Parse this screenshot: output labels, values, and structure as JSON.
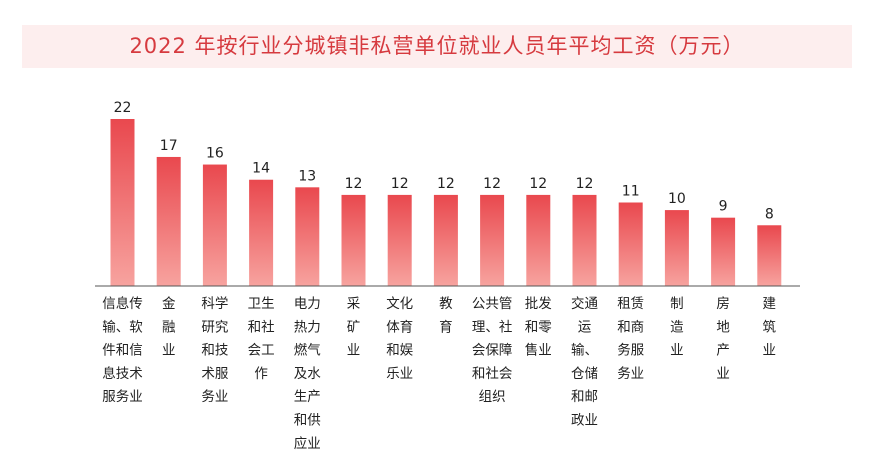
{
  "title": "2022 年按行业分城镇非私营单位就业人员年平均工资（万元）",
  "chart_data": {
    "type": "bar",
    "title": "2022 年按行业分城镇非私营单位就业人员年平均工资（万元）",
    "xlabel": "",
    "ylabel": "",
    "categories": [
      "信息传输、软件和信息技术服务业",
      "金融业",
      "科学研究和技术服务业",
      "卫生和社会工作",
      "电力热力燃气及水生产和供应业",
      "采矿业",
      "文化体育和娱乐业",
      "教育",
      "公共管理、社会保障和社会组织",
      "批发和零售业",
      "交通运输、仓储和邮政业",
      "租赁和商务服务业",
      "制造业",
      "房地产业",
      "建筑业"
    ],
    "category_lines": [
      [
        "信息传",
        "输、软",
        "件和信",
        "息技术",
        "服务业"
      ],
      [
        "金",
        "融",
        "业"
      ],
      [
        "科学",
        "研究",
        "和技",
        "术服",
        "务业"
      ],
      [
        "卫生",
        "和社",
        "会工",
        "作"
      ],
      [
        "电力",
        "热力",
        "燃气",
        "及水",
        "生产",
        "和供",
        "应业"
      ],
      [
        "采",
        "矿",
        "业"
      ],
      [
        "文化",
        "体育",
        "和娱",
        "乐业"
      ],
      [
        "教",
        "育"
      ],
      [
        "公共管",
        "理、社",
        "会保障",
        "和社会",
        "组织"
      ],
      [
        "批发",
        "和零",
        "售业"
      ],
      [
        "交通",
        "运",
        "输、",
        "仓储",
        "和邮",
        "政业"
      ],
      [
        "租赁",
        "和商",
        "务服",
        "务业"
      ],
      [
        "制",
        "造",
        "业"
      ],
      [
        "房",
        "地",
        "产",
        "业"
      ],
      [
        "建",
        "筑",
        "业"
      ]
    ],
    "values": [
      22,
      17,
      16,
      14,
      13,
      12,
      12,
      12,
      12,
      12,
      12,
      11,
      10,
      9,
      8
    ],
    "ylim": [
      0,
      22
    ],
    "grid": false,
    "legend": "none",
    "colors": {
      "bar_top": "#e9484e",
      "bar_bottom": "#f7a39f",
      "axis": "#555555",
      "title": "#d63a3f"
    }
  }
}
